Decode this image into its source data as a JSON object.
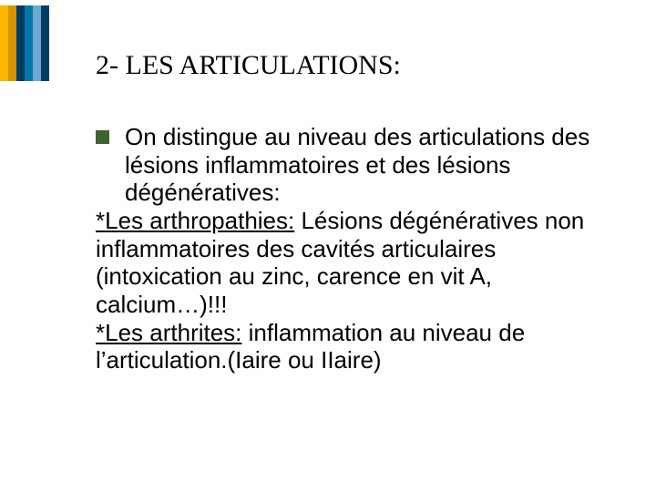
{
  "stripes": {
    "colors": [
      "#fdb600",
      "#d89300",
      "#003b64",
      "#0079a8",
      "#6fa8d1",
      "#003b64"
    ]
  },
  "title": "2- LES ARTICULATIONS:",
  "bullet_color": "#3f6230",
  "body": {
    "p1": "On distingue au niveau des articulations des lésions inflammatoires et des lésions dégénératives:",
    "p2_label": "*Les arthropathies:",
    "p2_rest": " Lésions dégénératives non inflammatoires des cavités articulaires (intoxication au zinc, carence en vit A, calcium…)!!!",
    "p3_label": "*Les arthrites:",
    "p3_rest": " inflammation au niveau de l’articulation.(Iaire ou IIaire)"
  },
  "text_color": "#000000",
  "background_color": "#ffffff",
  "title_fontsize": 30,
  "body_fontsize": 26
}
